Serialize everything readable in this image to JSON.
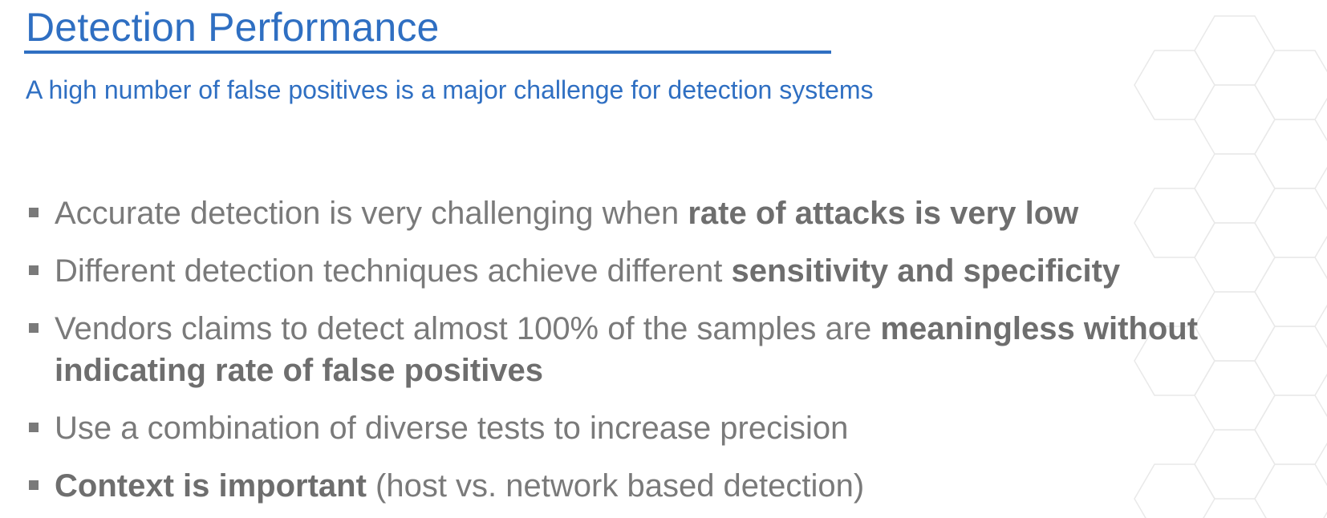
{
  "slide": {
    "title": "Detection Performance",
    "subtitle": "A high number of false positives is a major challenge for detection systems",
    "bullets": [
      {
        "pre": "Accurate detection is very challenging when ",
        "bold": "rate of attacks is very low",
        "post": ""
      },
      {
        "pre": "Different detection techniques achieve different ",
        "bold": "sensitivity and specificity",
        "post": ""
      },
      {
        "pre": "Vendors claims to detect almost 100% of the samples are ",
        "bold": "meaningless without indicating rate of false positives",
        "post": ""
      },
      {
        "pre": "Use a combination of diverse tests to increase precision",
        "bold": "",
        "post": ""
      },
      {
        "pre": "",
        "bold": "Context is important",
        "post": " (host vs. network based detection)"
      }
    ]
  },
  "colors": {
    "accent": "#2f6fc2",
    "body_text": "#7a7a7a",
    "background": "#ffffff"
  }
}
